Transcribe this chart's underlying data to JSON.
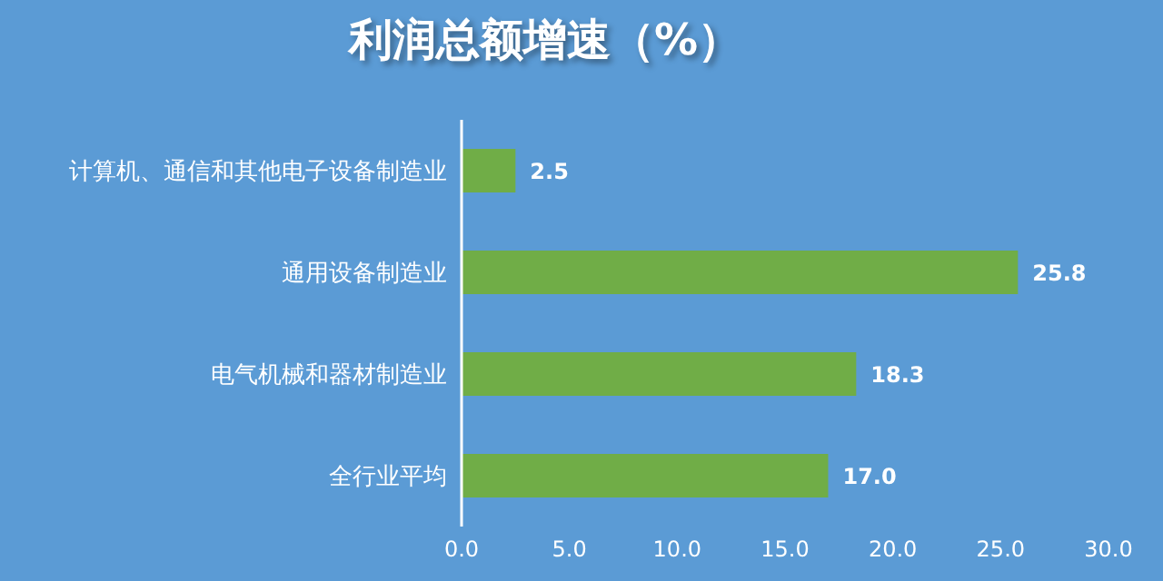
{
  "chart_data": {
    "type": "bar",
    "orientation": "horizontal",
    "title": "利润总额增速（%）",
    "categories": [
      "计算机、通信和其他电子设备制造业",
      "通用设备制造业",
      "电气机械和器材制造业",
      "全行业平均"
    ],
    "values": [
      2.5,
      25.8,
      18.3,
      17.0
    ],
    "value_labels": [
      "2.5",
      "25.8",
      "18.3",
      "17.0"
    ],
    "color": "#70ad47",
    "xlim": [
      0,
      30
    ],
    "xticks": [
      {
        "value": 0,
        "label": "0.0"
      },
      {
        "value": 5,
        "label": "5.0"
      },
      {
        "value": 10,
        "label": "10.0"
      },
      {
        "value": 15,
        "label": "15.0"
      },
      {
        "value": 20,
        "label": "20.0"
      },
      {
        "value": 25,
        "label": "25.0"
      },
      {
        "value": 30,
        "label": "30.0"
      }
    ],
    "grid": false
  }
}
